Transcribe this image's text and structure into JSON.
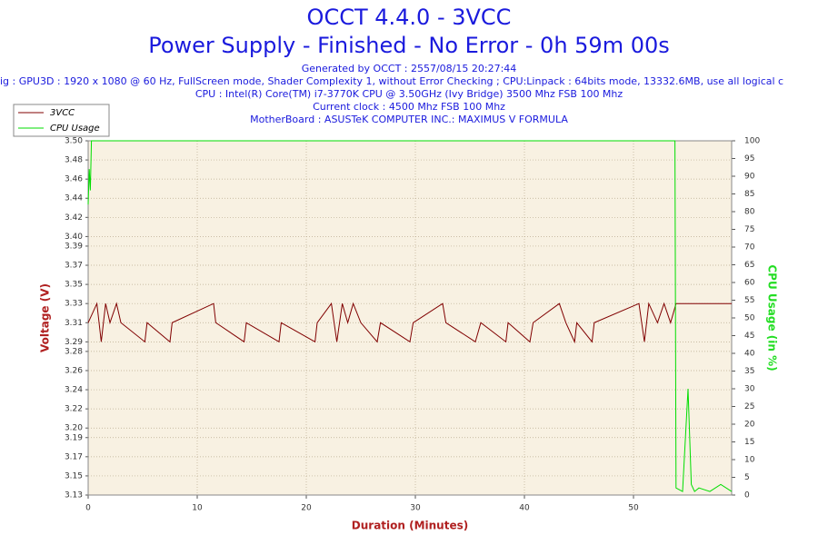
{
  "chart_data": {
    "type": "line",
    "title": "OCCT 4.4.0 - 3VCC",
    "subtitle": "Power Supply - Finished - No Error - 0h 59m 00s",
    "info_lines": [
      "Generated by OCCT : 2557/08/15 20:27:44",
      "ig : GPU3D : 1920 x 1080 @ 60 Hz, FullScreen mode, Shader Complexity 1, without Error Checking ; CPU:Linpack : 64bits mode, 13332.6MB, use all logical c",
      "CPU : Intel(R) Core(TM) i7-3770K CPU @ 3.50GHz (Ivy Bridge) 3500 Mhz FSB 100 Mhz",
      "Current clock : 4500 Mhz FSB 100 Mhz",
      "MotherBoard : ASUSTeK COMPUTER INC.: MAXIMUS V FORMULA"
    ],
    "x_label": "Duration (Minutes)",
    "y_label": "Voltage (V)",
    "y2_label": "CPU Usage (in %)",
    "xlim": [
      0,
      59
    ],
    "xticks": [
      0,
      10,
      20,
      30,
      40,
      50
    ],
    "ylim": [
      3.13,
      3.5
    ],
    "yticks": [
      {
        "value": 3.13,
        "label": "3.13"
      },
      {
        "value": 3.15,
        "label": "3.15"
      },
      {
        "value": 3.17,
        "label": "3.17"
      },
      {
        "value": 3.19,
        "label": "3.19"
      },
      {
        "value": 3.2,
        "label": "3.20"
      },
      {
        "value": 3.22,
        "label": "3.22"
      },
      {
        "value": 3.24,
        "label": "3.24"
      },
      {
        "value": 3.26,
        "label": "3.26"
      },
      {
        "value": 3.28,
        "label": "3.28"
      },
      {
        "value": 3.29,
        "label": "3.29"
      },
      {
        "value": 3.31,
        "label": "3.31"
      },
      {
        "value": 3.33,
        "label": "3.33"
      },
      {
        "value": 3.35,
        "label": "3.35"
      },
      {
        "value": 3.37,
        "label": "3.37"
      },
      {
        "value": 3.39,
        "label": "3.39"
      },
      {
        "value": 3.4,
        "label": "3.40"
      },
      {
        "value": 3.42,
        "label": "3.42"
      },
      {
        "value": 3.44,
        "label": "3.44"
      },
      {
        "value": 3.46,
        "label": "3.46"
      },
      {
        "value": 3.48,
        "label": "3.48"
      },
      {
        "value": 3.5,
        "label": "3.50"
      }
    ],
    "y2lim": [
      0,
      100
    ],
    "y2ticks": [
      0,
      5,
      10,
      15,
      20,
      25,
      30,
      35,
      40,
      45,
      50,
      55,
      60,
      65,
      70,
      75,
      80,
      85,
      90,
      95,
      100
    ],
    "grid": true,
    "legend": "upper left",
    "series": [
      {
        "name": "3VCC",
        "color": "#800000",
        "x": [
          0,
          0.8,
          1.2,
          1.6,
          2.0,
          2.6,
          3.0,
          5.2,
          5.4,
          7.5,
          7.7,
          11.5,
          11.7,
          14.3,
          14.5,
          17.5,
          17.7,
          20.8,
          21.0,
          22.3,
          22.8,
          23.3,
          23.8,
          24.3,
          25.0,
          26.5,
          26.8,
          29.5,
          29.8,
          32.5,
          32.8,
          35.5,
          36.0,
          38.3,
          38.5,
          40.5,
          40.8,
          43.2,
          43.8,
          44.6,
          44.8,
          46.2,
          46.4,
          50.5,
          51.0,
          51.4,
          52.2,
          52.8,
          53.4,
          53.9,
          59
        ],
        "values": [
          3.31,
          3.33,
          3.29,
          3.33,
          3.31,
          3.33,
          3.31,
          3.29,
          3.31,
          3.29,
          3.31,
          3.33,
          3.31,
          3.29,
          3.31,
          3.29,
          3.31,
          3.29,
          3.31,
          3.33,
          3.29,
          3.33,
          3.31,
          3.33,
          3.31,
          3.29,
          3.31,
          3.29,
          3.31,
          3.33,
          3.31,
          3.29,
          3.31,
          3.29,
          3.31,
          3.29,
          3.31,
          3.33,
          3.31,
          3.29,
          3.31,
          3.29,
          3.31,
          3.33,
          3.29,
          3.33,
          3.31,
          3.33,
          3.31,
          3.33,
          3.33
        ]
      },
      {
        "name": "CPU Usage",
        "color": "#00dd00",
        "axis": "y2",
        "x": [
          0,
          0.1,
          0.2,
          0.3,
          53.8,
          53.9,
          54.5,
          55,
          55.3,
          55.6,
          56,
          57,
          58,
          59
        ],
        "values": [
          82,
          92,
          86,
          100,
          100,
          2,
          1,
          30,
          3,
          1,
          2,
          1,
          3,
          1
        ]
      }
    ]
  }
}
